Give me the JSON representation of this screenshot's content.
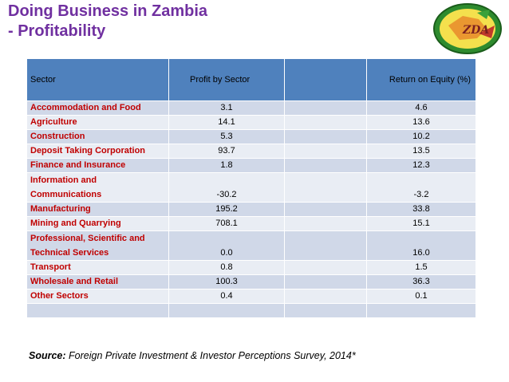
{
  "title_line1": "Doing Business in Zambia",
  "title_line2": "- Profitability",
  "table": {
    "headers": [
      "Sector",
      "Profit by Sector",
      "",
      "Return on Equity (%)"
    ],
    "rows": [
      {
        "sector": "Accommodation and Food",
        "profit": "3.1",
        "roe": "4.6"
      },
      {
        "sector": "Agriculture",
        "profit": "14.1",
        "roe": "13.6"
      },
      {
        "sector": "Construction",
        "profit": "5.3",
        "roe": "10.2"
      },
      {
        "sector": "Deposit Taking Corporation",
        "profit": "93.7",
        "roe": "13.5"
      },
      {
        "sector": "Finance and Insurance",
        "profit": "1.8",
        "roe": "12.3"
      },
      {
        "sector": "Information and Communications",
        "profit": "-30.2",
        "roe": "-3.2"
      },
      {
        "sector": "Manufacturing",
        "profit": "195.2",
        "roe": "33.8"
      },
      {
        "sector": "Mining and Quarrying",
        "profit": "708.1",
        "roe": "15.1"
      },
      {
        "sector": "Professional, Scientific and Technical Services",
        "profit": "0.0",
        "roe": "16.0"
      },
      {
        "sector": "Transport",
        "profit": "0.8",
        "roe": "1.5"
      },
      {
        "sector": "Wholesale and Retail",
        "profit": "100.3",
        "roe": "36.3"
      },
      {
        "sector": "Other Sectors",
        "profit": "0.4",
        "roe": "0.1"
      },
      {
        "sector": "",
        "profit": "",
        "roe": ""
      }
    ]
  },
  "source": {
    "label": "Source:",
    "text": " Foreign Private Investment & Investor Perceptions Survey, 2014*"
  },
  "colors": {
    "title": "#7030a0",
    "header_bg": "#4f81bd",
    "row_odd": "#d0d8e8",
    "row_even": "#e9edf4",
    "sector_text": "#c00000"
  },
  "logo": {
    "icon": "zambia-logo-icon",
    "text": "ZDA"
  }
}
